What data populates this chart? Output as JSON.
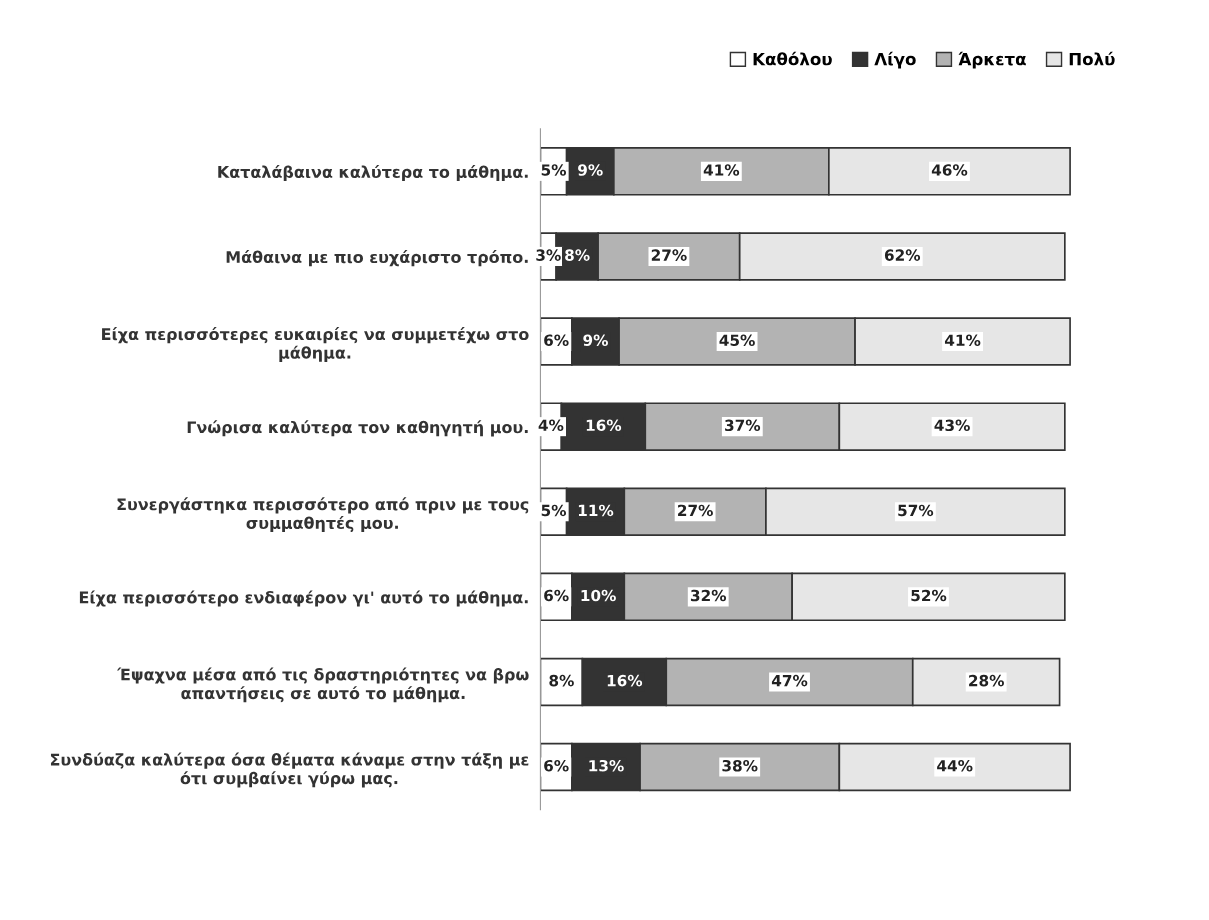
{
  "chart_data": {
    "type": "bar",
    "orientation": "horizontal",
    "stacked": true,
    "data_labels": true,
    "legend": "top right",
    "grid": false,
    "categories": [
      "Καταλάβαινα καλύτερα το μάθημα.",
      "Μάθαινα με πιο ευχάριστο τρόπο.",
      "Είχα περισσότερες ευκαιρίες να συμμετέχω στο\nμάθημα.",
      "Γνώρισα καλύτερα τον καθηγητή μου.",
      "Συνεργάστηκα περισσότερο από πριν με τους\nσυμμαθητές μου.",
      "Είχα περισσότερο ενδιαφέρον γι' αυτό το μάθημα.",
      "Έψαχνα μέσα από τις δραστηριότητες να βρω\nαπαντήσεις σε αυτό το μάθημα.",
      "Συνδύαζα καλύτερα όσα θέματα κάναμε στην τάξη με\nότι συμβαίνει γύρω μας."
    ],
    "series": [
      {
        "name": "Καθόλου",
        "color": "#ffffff",
        "values": [
          5,
          3,
          6,
          4,
          5,
          6,
          8,
          6
        ],
        "value_labels": [
          "5%",
          "3%",
          "6%",
          "4%",
          "5%",
          "6%",
          "8%",
          "6%"
        ]
      },
      {
        "name": "Λίγο",
        "color": "#333333",
        "values": [
          9,
          8,
          9,
          16,
          11,
          10,
          16,
          13
        ],
        "value_labels": [
          "9%",
          "8%",
          "9%",
          "16%",
          "11%",
          "10%",
          "16%",
          "13%"
        ]
      },
      {
        "name": "Άρκετα",
        "color": "#b3b3b3",
        "values": [
          41,
          27,
          45,
          37,
          27,
          32,
          47,
          38
        ],
        "value_labels": [
          "41%",
          "27%",
          "45%",
          "37%",
          "27%",
          "32%",
          "47%",
          "38%"
        ]
      },
      {
        "name": "Πολύ",
        "color": "#e6e6e6",
        "values": [
          46,
          62,
          41,
          43,
          57,
          52,
          28,
          44
        ],
        "value_labels": [
          "46%",
          "62%",
          "41%",
          "43%",
          "57%",
          "52%",
          "28%",
          "44%"
        ]
      }
    ]
  }
}
